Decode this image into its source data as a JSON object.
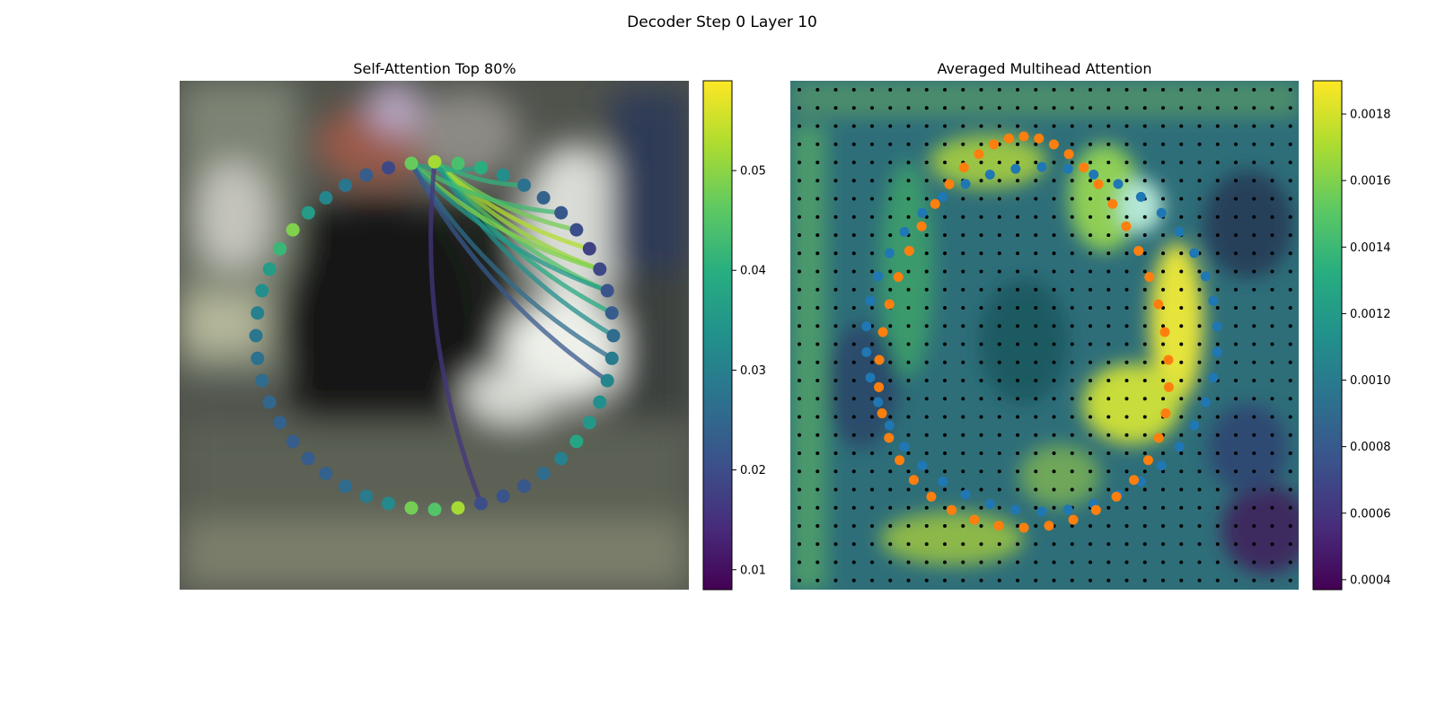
{
  "figure": {
    "title": "Decoder Step 0 Layer 10"
  },
  "chart_data": [
    {
      "type": "scatter",
      "title": "Self-Attention Top 80%",
      "description_of_marks": "ring of 48 query points colored by attention weight; curved edges from the top points to the right side",
      "colormap": "viridis",
      "colorbar": {
        "ticks": [
          0.01,
          0.02,
          0.03,
          0.04,
          0.05
        ],
        "range": [
          0.008,
          0.059
        ]
      },
      "points": {
        "count": 48,
        "values": [
          0.052,
          0.044,
          0.04,
          0.033,
          0.027,
          0.024,
          0.022,
          0.02,
          0.018,
          0.019,
          0.021,
          0.023,
          0.026,
          0.029,
          0.031,
          0.033,
          0.035,
          0.038,
          0.03,
          0.026,
          0.022,
          0.021,
          0.02,
          0.052,
          0.045,
          0.048,
          0.032,
          0.029,
          0.026,
          0.024,
          0.023,
          0.023,
          0.024,
          0.025,
          0.026,
          0.027,
          0.028,
          0.03,
          0.033,
          0.036,
          0.042,
          0.049,
          0.036,
          0.031,
          0.028,
          0.023,
          0.019,
          0.047
        ]
      },
      "edges": [
        {
          "from": 0,
          "to": 7,
          "value": 0.048
        },
        {
          "from": 0,
          "to": 8,
          "value": 0.053
        },
        {
          "from": 0,
          "to": 9,
          "value": 0.051
        },
        {
          "from": 0,
          "to": 10,
          "value": 0.045
        },
        {
          "from": 0,
          "to": 11,
          "value": 0.039
        },
        {
          "from": 0,
          "to": 12,
          "value": 0.033
        },
        {
          "from": 47,
          "to": 6,
          "value": 0.043
        },
        {
          "from": 47,
          "to": 9,
          "value": 0.049
        },
        {
          "from": 47,
          "to": 10,
          "value": 0.035
        },
        {
          "from": 47,
          "to": 13,
          "value": 0.026
        },
        {
          "from": 47,
          "to": 14,
          "value": 0.022
        },
        {
          "from": 47,
          "to": 2,
          "value": 0.037
        },
        {
          "from": 0,
          "to": 4,
          "value": 0.041
        },
        {
          "from": 0,
          "to": 22,
          "value": 0.016
        }
      ]
    },
    {
      "type": "heatmap",
      "title": "Averaged Multihead Attention",
      "colormap": "viridis",
      "colorbar": {
        "ticks": [
          0.0004,
          0.0006,
          0.0008,
          0.001,
          0.0012,
          0.0014,
          0.0016,
          0.0018
        ],
        "range": [
          0.00037,
          0.0019
        ]
      },
      "grid_dots": {
        "rows": 28,
        "cols": 28
      },
      "series": [
        {
          "color": "#1f77b4"
        },
        {
          "color": "#ff7f0e"
        }
      ]
    }
  ]
}
